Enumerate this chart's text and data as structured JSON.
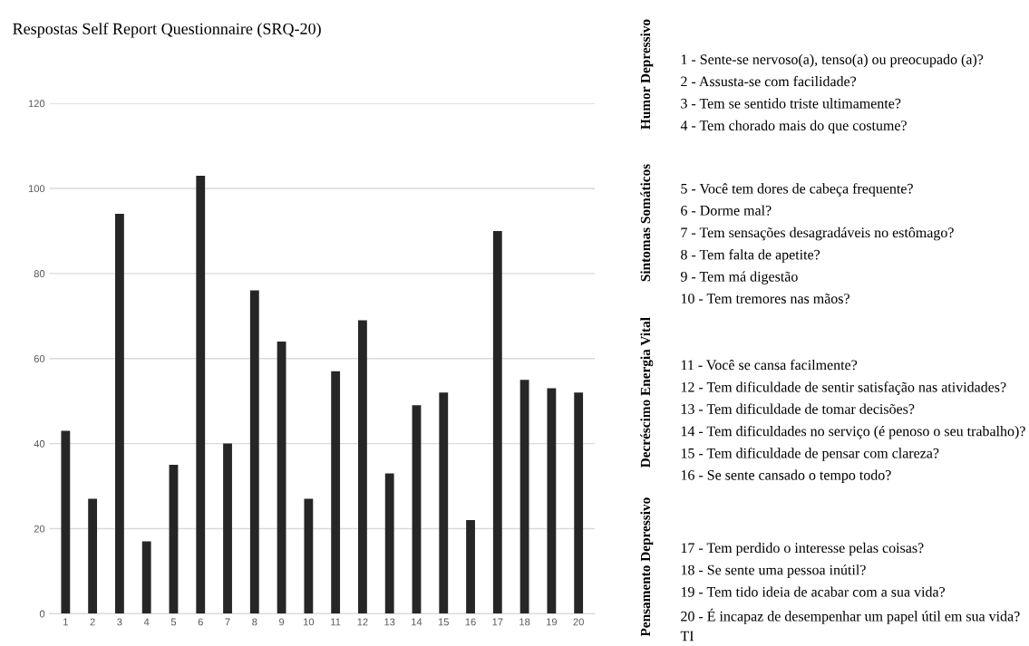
{
  "chart_data": [
    {
      "type": "bar",
      "title": "Respostas Self Report Questionnaire (SRQ-20)",
      "categories": [
        "1",
        "2",
        "3",
        "4",
        "5",
        "6",
        "7",
        "8",
        "9",
        "10",
        "11",
        "12",
        "13",
        "14",
        "15",
        "16",
        "17",
        "18",
        "19",
        "20"
      ],
      "values": [
        43,
        27,
        94,
        17,
        35,
        103,
        40,
        76,
        64,
        27,
        57,
        69,
        33,
        49,
        52,
        22,
        90,
        55,
        53,
        52
      ],
      "color": "#262626",
      "ylim": [
        0,
        120
      ],
      "yticks": [
        0,
        20,
        40,
        60,
        80,
        100,
        120
      ],
      "grid": "y"
    },
    {
      "type": "other",
      "title": "Humor Depressivo",
      "annotations": [
        "1 - Sente-se nervoso(a), tenso(a) ou preocupado (a)?",
        "2 - Assusta-se com facilidade?",
        "3 - Tem se sentido triste ultimamente?",
        "4 - Tem chorado mais do que costume?"
      ]
    },
    {
      "type": "other",
      "title": "Sintomas Somáticos",
      "annotations": [
        "5 - Você tem dores de cabeça frequente?",
        "6 - Dorme mal?",
        "7 - Tem sensações desagradáveis no estômago?",
        "8 - Tem falta de apetite?",
        "9 - Tem má digestão",
        "10 - Tem tremores nas mãos?"
      ]
    },
    {
      "type": "other",
      "title": "Decréscimo Energia Vital",
      "annotations": [
        "11 - Você se cansa facilmente?",
        "12 - Tem dificuldade de sentir satisfação nas atividades?",
        "13 - Tem dificuldade de tomar decisões?",
        "14 - Tem dificuldades no serviço (é penoso o seu trabalho)?",
        "15 - Tem dificuldade de pensar com clareza?",
        "16 - Se sente cansado o tempo todo?"
      ]
    },
    {
      "type": "other",
      "title": "Pensamento Depressivo",
      "annotations": [
        "17 - Tem perdido o interesse pelas coisas?",
        "18 - Se sente uma pessoa inútil?",
        "19 - Tem tido ideia de acabar com a sua vida?",
        "20 - É incapaz de desempenhar um papel útil em sua vida?",
        "TI"
      ]
    }
  ]
}
